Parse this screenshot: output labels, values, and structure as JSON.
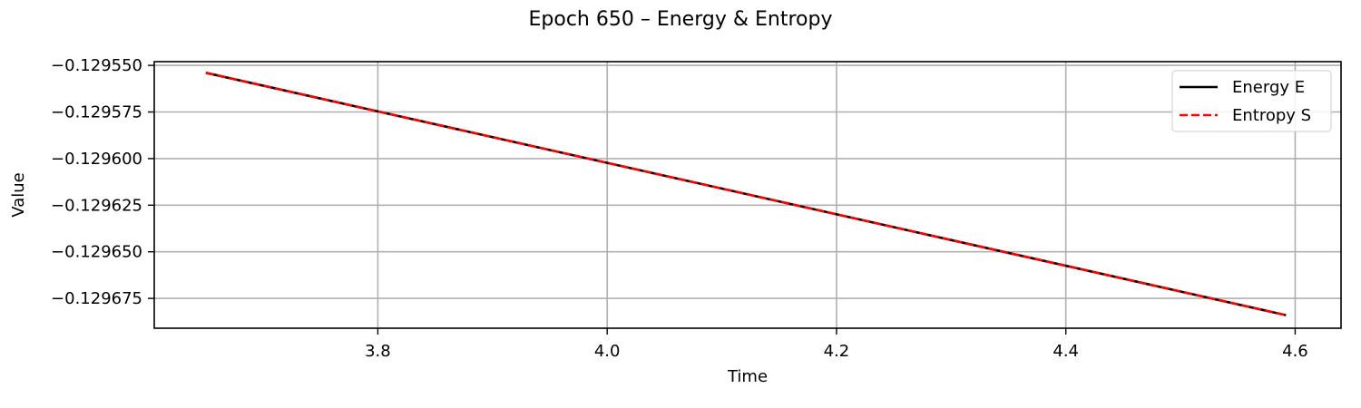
{
  "chart_data": {
    "type": "line",
    "title": "Epoch 650 – Energy & Entropy",
    "xlabel": "Time",
    "ylabel": "Value",
    "xlim": [
      3.605,
      4.64
    ],
    "ylim": [
      -0.129691,
      -0.129548
    ],
    "xticks": [
      3.8,
      4.0,
      4.2,
      4.4,
      4.6
    ],
    "xtick_labels": [
      "3.8",
      "4.0",
      "4.2",
      "4.4",
      "4.6"
    ],
    "yticks": [
      -0.12955,
      -0.129575,
      -0.1296,
      -0.129625,
      -0.12965,
      -0.129675
    ],
    "ytick_labels": [
      "−0.129550",
      "−0.129575",
      "−0.129600",
      "−0.129625",
      "−0.129650",
      "−0.129675"
    ],
    "grid": true,
    "legend_position": "top-right",
    "series": [
      {
        "name": "Energy E",
        "color": "#000000",
        "style": "solid",
        "x": [
          3.65,
          4.592
        ],
        "y": [
          -0.129554,
          -0.129684
        ]
      },
      {
        "name": "Entropy S",
        "color": "#ff0000",
        "style": "dashed",
        "x": [
          3.65,
          4.592
        ],
        "y": [
          -0.129554,
          -0.129684
        ]
      }
    ]
  }
}
